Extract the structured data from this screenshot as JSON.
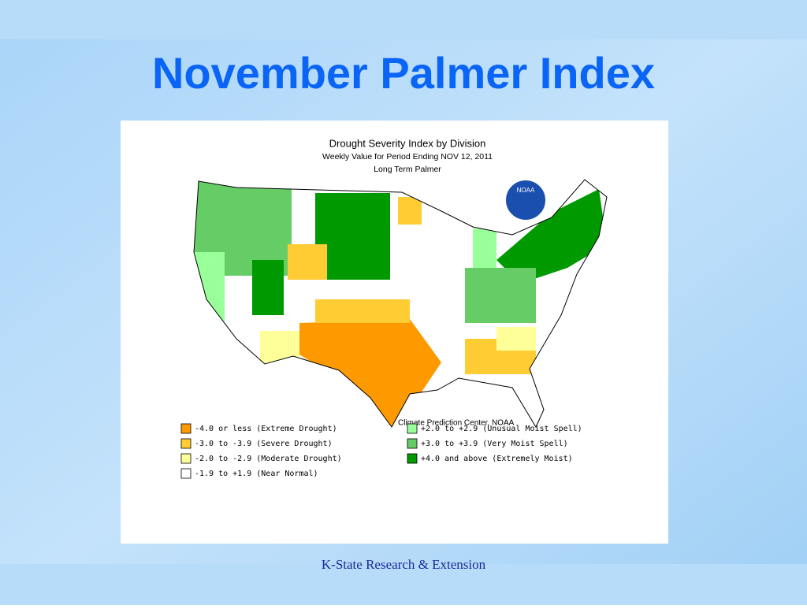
{
  "slide": {
    "title": "November Palmer Index",
    "footer": "K-State Research & Extension"
  },
  "map": {
    "title": "Drought Severity Index by Division",
    "subtitle": "Weekly Value for Period Ending NOV 12, 2011",
    "subtitle2": "Long Term Palmer",
    "logo": "NOAA",
    "credit": "Climate Prediction Center, NOAA",
    "legend": [
      {
        "label": "-4.0 or less (Extreme Drought)",
        "color": "#ff9900"
      },
      {
        "label": "-3.0 to -3.9 (Severe Drought)",
        "color": "#ffcc33"
      },
      {
        "label": "-2.0 to -2.9 (Moderate Drought)",
        "color": "#ffff99"
      },
      {
        "label": "-1.9 to +1.9 (Near Normal)",
        "color": "#ffffff"
      },
      {
        "label": "+2.0 to +2.9 (Unusual Moist Spell)",
        "color": "#99ff99"
      },
      {
        "label": "+3.0 to +3.9 (Very Moist Spell)",
        "color": "#66cc66"
      },
      {
        "label": "+4.0 and above (Extremely Moist)",
        "color": "#009900"
      }
    ]
  }
}
